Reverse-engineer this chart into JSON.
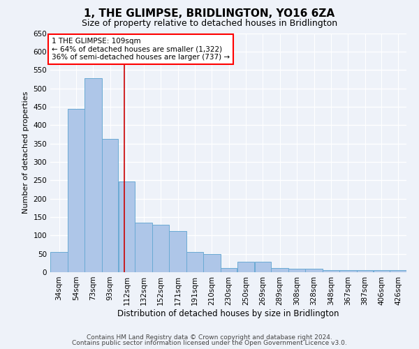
{
  "title": "1, THE GLIMPSE, BRIDLINGTON, YO16 6ZA",
  "subtitle": "Size of property relative to detached houses in Bridlington",
  "xlabel": "Distribution of detached houses by size in Bridlington",
  "ylabel": "Number of detached properties",
  "footnote1": "Contains HM Land Registry data © Crown copyright and database right 2024.",
  "footnote2": "Contains public sector information licensed under the Open Government Licence v3.0.",
  "annotation_line1": "1 THE GLIMPSE: 109sqm",
  "annotation_line2": "← 64% of detached houses are smaller (1,322)",
  "annotation_line3": "36% of semi-detached houses are larger (737) →",
  "bar_color": "#aec6e8",
  "bar_edge_color": "#6aaad4",
  "ref_line_color": "#cc0000",
  "ref_line_x": 109,
  "background_color": "#eef2f9",
  "grid_color": "#ffffff",
  "categories": [
    "34sqm",
    "54sqm",
    "73sqm",
    "93sqm",
    "112sqm",
    "132sqm",
    "152sqm",
    "171sqm",
    "191sqm",
    "210sqm",
    "230sqm",
    "250sqm",
    "269sqm",
    "289sqm",
    "308sqm",
    "328sqm",
    "348sqm",
    "367sqm",
    "387sqm",
    "406sqm",
    "426sqm"
  ],
  "bin_edges": [
    24.5,
    44.5,
    63.5,
    83.5,
    102.5,
    121.5,
    141.5,
    160.5,
    180.5,
    199.5,
    219.5,
    238.5,
    258.5,
    277.5,
    297.5,
    316.5,
    336.5,
    355.5,
    375.5,
    394.5,
    413.5,
    432.5
  ],
  "values": [
    55,
    445,
    528,
    363,
    247,
    135,
    130,
    112,
    55,
    50,
    12,
    28,
    28,
    12,
    10,
    10,
    5,
    5,
    5,
    5,
    5
  ],
  "ylim": [
    0,
    650
  ],
  "yticks": [
    0,
    50,
    100,
    150,
    200,
    250,
    300,
    350,
    400,
    450,
    500,
    550,
    600,
    650
  ],
  "title_fontsize": 11,
  "subtitle_fontsize": 9,
  "ylabel_fontsize": 8,
  "xlabel_fontsize": 8.5,
  "tick_fontsize": 7.5,
  "annot_fontsize": 7.5,
  "footnote_fontsize": 6.5
}
